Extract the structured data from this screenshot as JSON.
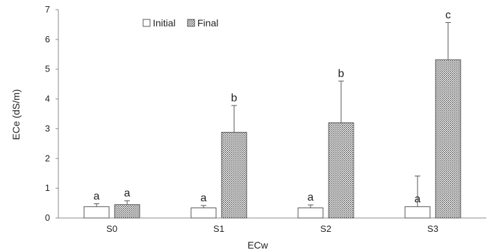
{
  "chart_data": {
    "type": "bar",
    "xlabel": "ECw",
    "ylabel": "ECe (dS/m)",
    "ylim": [
      0,
      7
    ],
    "yticks": [
      0,
      1,
      2,
      3,
      4,
      5,
      6,
      7
    ],
    "categories": [
      "S0",
      "S1",
      "S2",
      "S3"
    ],
    "series": [
      {
        "name": "Initial",
        "pattern": "hollow",
        "values": [
          0.38,
          0.34,
          0.34,
          0.38
        ],
        "error": [
          0.1,
          0.08,
          0.1,
          1.03
        ],
        "labels": [
          "a",
          "a",
          "a",
          "a"
        ]
      },
      {
        "name": "Final",
        "pattern": "dotted",
        "values": [
          0.45,
          2.88,
          3.2,
          5.32
        ],
        "error": [
          0.13,
          0.9,
          1.4,
          1.25
        ],
        "labels": [
          "a",
          "b",
          "b",
          "c"
        ]
      }
    ],
    "legend": "top-left",
    "grid": false
  }
}
